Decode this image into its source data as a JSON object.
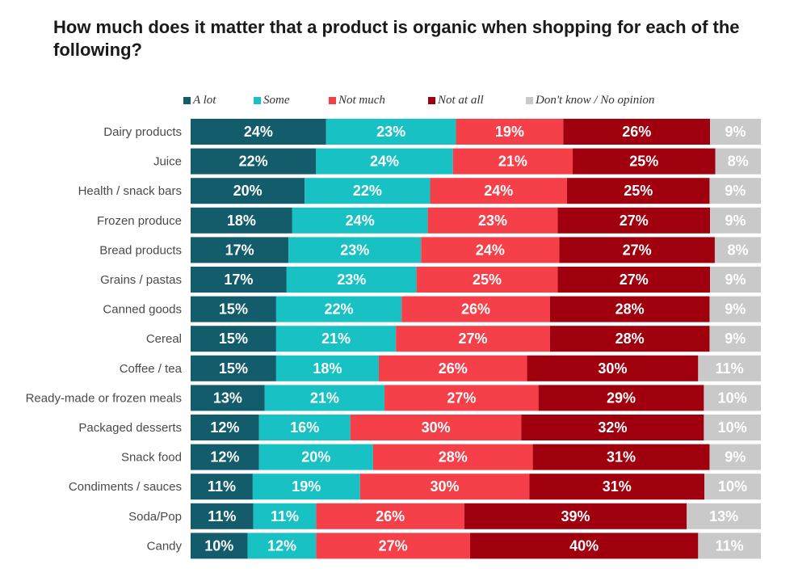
{
  "title": "How much does it matter that a product is organic when shopping for each of the following?",
  "chart_data": {
    "type": "bar",
    "orientation": "horizontal",
    "stacked": true,
    "title": "How much does it matter that a product is organic when shopping for each of the following?",
    "legend_position": "top",
    "grid": false,
    "categories": [
      "Dairy products",
      "Juice",
      "Health / snack bars",
      "Frozen produce",
      "Bread products",
      "Grains / pastas",
      "Canned goods",
      "Cereal",
      "Coffee / tea",
      "Ready-made or frozen meals",
      "Packaged desserts",
      "Snack food",
      "Condiments / sauces",
      "Soda/Pop",
      "Candy"
    ],
    "series": [
      {
        "name": "A lot",
        "color": "#135c6b",
        "values": [
          24,
          22,
          20,
          18,
          17,
          17,
          15,
          15,
          15,
          13,
          12,
          12,
          11,
          11,
          10
        ]
      },
      {
        "name": "Some",
        "color": "#18c2c4",
        "values": [
          23,
          24,
          22,
          24,
          23,
          23,
          22,
          21,
          18,
          21,
          16,
          20,
          19,
          11,
          12
        ]
      },
      {
        "name": "Not much",
        "color": "#f5404a",
        "values": [
          19,
          21,
          24,
          23,
          24,
          25,
          26,
          27,
          26,
          27,
          30,
          28,
          30,
          26,
          27
        ]
      },
      {
        "name": "Not at all",
        "color": "#a0000d",
        "values": [
          26,
          25,
          25,
          27,
          27,
          27,
          28,
          28,
          30,
          29,
          32,
          31,
          31,
          39,
          40
        ]
      },
      {
        "name": "Don't know / No opinion",
        "color": "#c9c9c9",
        "values": [
          9,
          8,
          9,
          9,
          8,
          9,
          9,
          9,
          11,
          10,
          10,
          9,
          10,
          13,
          11
        ]
      }
    ],
    "value_suffix": "%"
  }
}
